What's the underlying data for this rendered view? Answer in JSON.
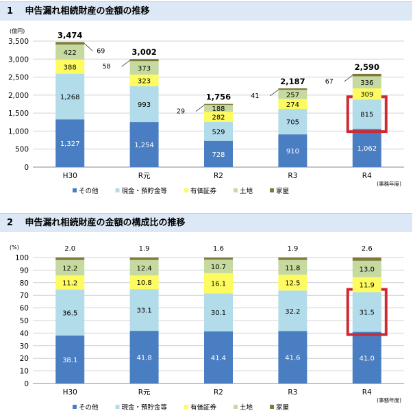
{
  "sections": [
    {
      "number": "1",
      "title": "申告漏れ相続財産の金額の推移"
    },
    {
      "number": "2",
      "title": "申告漏れ相続財産の金額の構成比の推移"
    }
  ],
  "colors": {
    "その他": "#4a7ec2",
    "現金・預貯金等": "#b2dcea",
    "有価証券": "#fdfb60",
    "土地": "#c5d9a0",
    "家屋": "#7e7b39",
    "highlight": "#cc2b36"
  },
  "chart_data": [
    {
      "type": "bar",
      "stacked": true,
      "ylabel": "(億円)",
      "ylim": [
        0,
        3500
      ],
      "yticks": [
        0,
        500,
        1000,
        1500,
        2000,
        2500,
        3000,
        3500
      ],
      "ytick_labels": [
        "0",
        "500",
        "1,000",
        "1,500",
        "2,000",
        "2,500",
        "3,000",
        "3,500"
      ],
      "categories": [
        "H30",
        "R元",
        "R2",
        "R3",
        "R4"
      ],
      "xlabel_note": "(事務年度)",
      "grid": true,
      "legend": "bottom",
      "series": [
        {
          "name": "その他",
          "values": [
            1327,
            1254,
            728,
            910,
            1062
          ],
          "labels": [
            "1,327",
            "1,254",
            "728",
            "910",
            "1,062"
          ]
        },
        {
          "name": "現金・預貯金等",
          "values": [
            1268,
            993,
            529,
            705,
            815
          ],
          "labels": [
            "1,268",
            "993",
            "529",
            "705",
            "815"
          ]
        },
        {
          "name": "有価証券",
          "values": [
            388,
            323,
            282,
            274,
            309
          ],
          "labels": [
            "388",
            "323",
            "282",
            "274",
            "309"
          ]
        },
        {
          "name": "土地",
          "values": [
            422,
            373,
            188,
            257,
            336
          ],
          "labels": [
            "422",
            "373",
            "188",
            "257",
            "336"
          ]
        },
        {
          "name": "家屋",
          "values": [
            69,
            58,
            29,
            41,
            67
          ],
          "labels": [
            "69",
            "58",
            "29",
            "41",
            "67"
          ]
        }
      ],
      "totals": [
        "3,474",
        "3,002",
        "1,756",
        "2,187",
        "2,590"
      ],
      "highlight": {
        "category": "R4",
        "series": "現金・預貯金等"
      }
    },
    {
      "type": "bar",
      "stacked": true,
      "ylabel": "(%)",
      "ylim": [
        0,
        100
      ],
      "yticks": [
        0,
        10,
        20,
        30,
        40,
        50,
        60,
        70,
        80,
        90,
        100
      ],
      "ytick_labels": [
        "0",
        "10",
        "20",
        "30",
        "40",
        "50",
        "60",
        "70",
        "80",
        "90",
        "100"
      ],
      "categories": [
        "H30",
        "R元",
        "R2",
        "R3",
        "R4"
      ],
      "xlabel_note": "(事務年度)",
      "grid": true,
      "legend": "bottom",
      "series": [
        {
          "name": "その他",
          "values": [
            38.1,
            41.8,
            41.4,
            41.6,
            41.0
          ],
          "labels": [
            "38.1",
            "41.8",
            "41.4",
            "41.6",
            "41.0"
          ]
        },
        {
          "name": "現金・預貯金等",
          "values": [
            36.5,
            33.1,
            30.1,
            32.2,
            31.5
          ],
          "labels": [
            "36.5",
            "33.1",
            "30.1",
            "32.2",
            "31.5"
          ]
        },
        {
          "name": "有価証券",
          "values": [
            11.2,
            10.8,
            16.1,
            12.5,
            11.9
          ],
          "labels": [
            "11.2",
            "10.8",
            "16.1",
            "12.5",
            "11.9"
          ]
        },
        {
          "name": "土地",
          "values": [
            12.2,
            12.4,
            10.7,
            11.8,
            13.0
          ],
          "labels": [
            "12.2",
            "12.4",
            "10.7",
            "11.8",
            "13.0"
          ]
        },
        {
          "name": "家屋",
          "values": [
            2.0,
            1.9,
            1.6,
            1.9,
            2.6
          ],
          "labels": [
            "2.0",
            "1.9",
            "1.6",
            "1.9",
            "2.6"
          ]
        }
      ],
      "highlight": {
        "category": "R4",
        "series": "現金・預貯金等"
      }
    }
  ]
}
